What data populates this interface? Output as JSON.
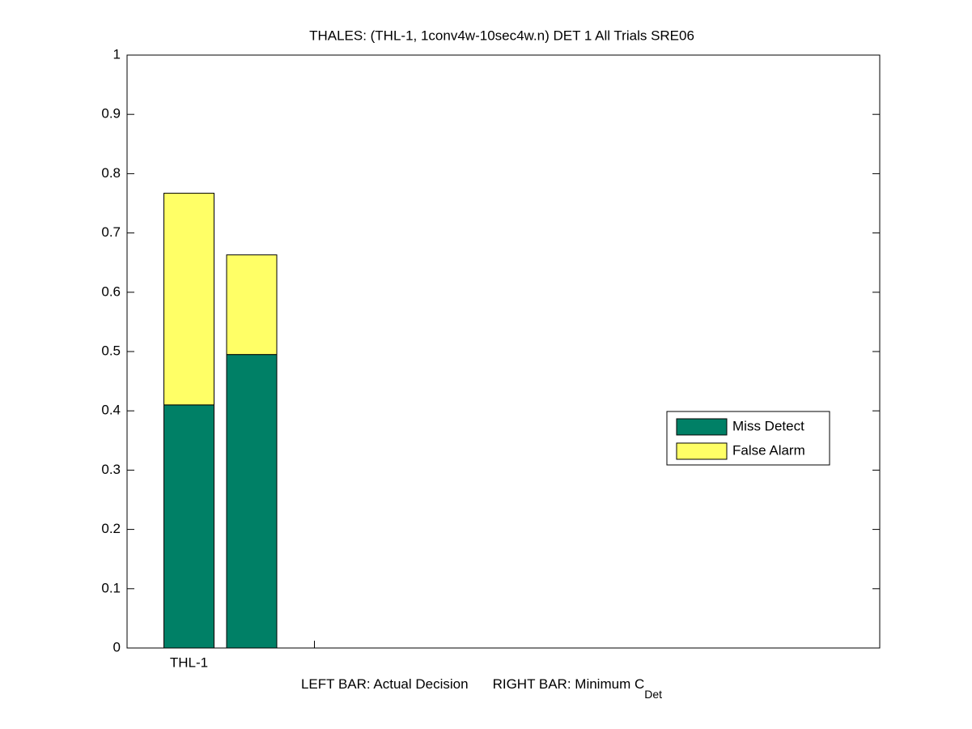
{
  "chart_data": {
    "type": "stacked-bar",
    "title": "THALES: (THL-1, 1conv4w-10sec4w.n) DET 1 All Trials SRE06",
    "xlabel_left": "LEFT BAR: Actual Decision",
    "xlabel_right": "RIGHT BAR: Minimum C",
    "xlabel_subscript": "Det",
    "categories": [
      "THL-1",
      null
    ],
    "series": [
      {
        "name": "Miss Detect",
        "color": "#008066",
        "values": [
          0.41,
          0.495
        ]
      },
      {
        "name": "False Alarm",
        "color": "#ffff66",
        "values": [
          0.357,
          0.168
        ]
      }
    ],
    "ylim": [
      0,
      1
    ],
    "yticks": [
      0,
      0.1,
      0.2,
      0.3,
      0.4,
      0.5,
      0.6,
      0.7,
      0.8,
      0.9,
      1
    ],
    "legend": "right"
  }
}
